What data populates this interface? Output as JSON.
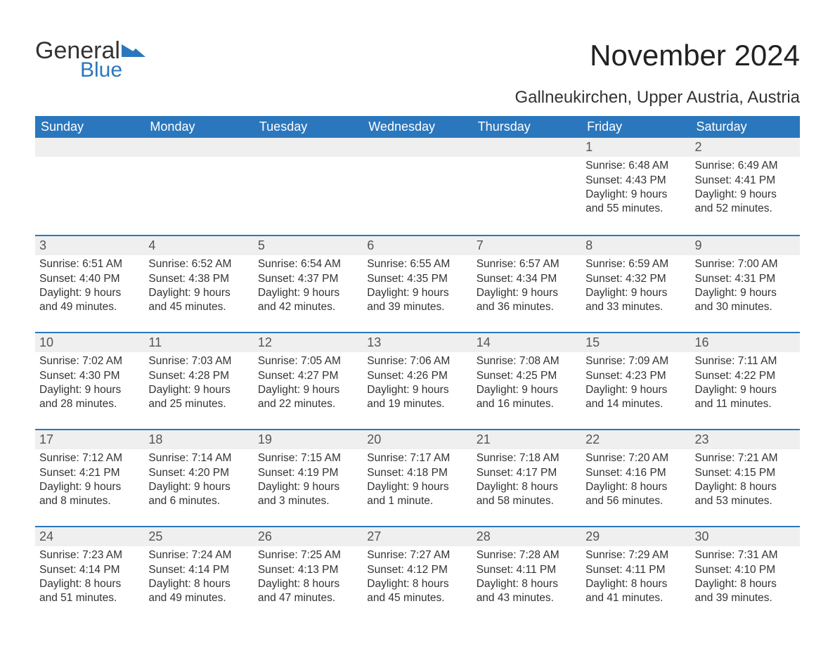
{
  "brand": {
    "word1": "General",
    "word2": "Blue",
    "accent_color": "#2b77bd"
  },
  "title": "November 2024",
  "location": "Gallneukirchen, Upper Austria, Austria",
  "colors": {
    "header_bg": "#2b77bd",
    "header_text": "#ffffff",
    "daybar_bg": "#efefef",
    "daybar_border": "#2b77bd",
    "page_bg": "#ffffff",
    "body_text": "#333333"
  },
  "typography": {
    "title_fontsize": 42,
    "location_fontsize": 24,
    "header_fontsize": 18,
    "daynum_fontsize": 18,
    "body_fontsize": 15.5
  },
  "weekday_headers": [
    "Sunday",
    "Monday",
    "Tuesday",
    "Wednesday",
    "Thursday",
    "Friday",
    "Saturday"
  ],
  "weeks": [
    [
      null,
      null,
      null,
      null,
      null,
      {
        "day": "1",
        "sunrise": "Sunrise: 6:48 AM",
        "sunset": "Sunset: 4:43 PM",
        "daylight1": "Daylight: 9 hours",
        "daylight2": "and 55 minutes."
      },
      {
        "day": "2",
        "sunrise": "Sunrise: 6:49 AM",
        "sunset": "Sunset: 4:41 PM",
        "daylight1": "Daylight: 9 hours",
        "daylight2": "and 52 minutes."
      }
    ],
    [
      {
        "day": "3",
        "sunrise": "Sunrise: 6:51 AM",
        "sunset": "Sunset: 4:40 PM",
        "daylight1": "Daylight: 9 hours",
        "daylight2": "and 49 minutes."
      },
      {
        "day": "4",
        "sunrise": "Sunrise: 6:52 AM",
        "sunset": "Sunset: 4:38 PM",
        "daylight1": "Daylight: 9 hours",
        "daylight2": "and 45 minutes."
      },
      {
        "day": "5",
        "sunrise": "Sunrise: 6:54 AM",
        "sunset": "Sunset: 4:37 PM",
        "daylight1": "Daylight: 9 hours",
        "daylight2": "and 42 minutes."
      },
      {
        "day": "6",
        "sunrise": "Sunrise: 6:55 AM",
        "sunset": "Sunset: 4:35 PM",
        "daylight1": "Daylight: 9 hours",
        "daylight2": "and 39 minutes."
      },
      {
        "day": "7",
        "sunrise": "Sunrise: 6:57 AM",
        "sunset": "Sunset: 4:34 PM",
        "daylight1": "Daylight: 9 hours",
        "daylight2": "and 36 minutes."
      },
      {
        "day": "8",
        "sunrise": "Sunrise: 6:59 AM",
        "sunset": "Sunset: 4:32 PM",
        "daylight1": "Daylight: 9 hours",
        "daylight2": "and 33 minutes."
      },
      {
        "day": "9",
        "sunrise": "Sunrise: 7:00 AM",
        "sunset": "Sunset: 4:31 PM",
        "daylight1": "Daylight: 9 hours",
        "daylight2": "and 30 minutes."
      }
    ],
    [
      {
        "day": "10",
        "sunrise": "Sunrise: 7:02 AM",
        "sunset": "Sunset: 4:30 PM",
        "daylight1": "Daylight: 9 hours",
        "daylight2": "and 28 minutes."
      },
      {
        "day": "11",
        "sunrise": "Sunrise: 7:03 AM",
        "sunset": "Sunset: 4:28 PM",
        "daylight1": "Daylight: 9 hours",
        "daylight2": "and 25 minutes."
      },
      {
        "day": "12",
        "sunrise": "Sunrise: 7:05 AM",
        "sunset": "Sunset: 4:27 PM",
        "daylight1": "Daylight: 9 hours",
        "daylight2": "and 22 minutes."
      },
      {
        "day": "13",
        "sunrise": "Sunrise: 7:06 AM",
        "sunset": "Sunset: 4:26 PM",
        "daylight1": "Daylight: 9 hours",
        "daylight2": "and 19 minutes."
      },
      {
        "day": "14",
        "sunrise": "Sunrise: 7:08 AM",
        "sunset": "Sunset: 4:25 PM",
        "daylight1": "Daylight: 9 hours",
        "daylight2": "and 16 minutes."
      },
      {
        "day": "15",
        "sunrise": "Sunrise: 7:09 AM",
        "sunset": "Sunset: 4:23 PM",
        "daylight1": "Daylight: 9 hours",
        "daylight2": "and 14 minutes."
      },
      {
        "day": "16",
        "sunrise": "Sunrise: 7:11 AM",
        "sunset": "Sunset: 4:22 PM",
        "daylight1": "Daylight: 9 hours",
        "daylight2": "and 11 minutes."
      }
    ],
    [
      {
        "day": "17",
        "sunrise": "Sunrise: 7:12 AM",
        "sunset": "Sunset: 4:21 PM",
        "daylight1": "Daylight: 9 hours",
        "daylight2": "and 8 minutes."
      },
      {
        "day": "18",
        "sunrise": "Sunrise: 7:14 AM",
        "sunset": "Sunset: 4:20 PM",
        "daylight1": "Daylight: 9 hours",
        "daylight2": "and 6 minutes."
      },
      {
        "day": "19",
        "sunrise": "Sunrise: 7:15 AM",
        "sunset": "Sunset: 4:19 PM",
        "daylight1": "Daylight: 9 hours",
        "daylight2": "and 3 minutes."
      },
      {
        "day": "20",
        "sunrise": "Sunrise: 7:17 AM",
        "sunset": "Sunset: 4:18 PM",
        "daylight1": "Daylight: 9 hours",
        "daylight2": "and 1 minute."
      },
      {
        "day": "21",
        "sunrise": "Sunrise: 7:18 AM",
        "sunset": "Sunset: 4:17 PM",
        "daylight1": "Daylight: 8 hours",
        "daylight2": "and 58 minutes."
      },
      {
        "day": "22",
        "sunrise": "Sunrise: 7:20 AM",
        "sunset": "Sunset: 4:16 PM",
        "daylight1": "Daylight: 8 hours",
        "daylight2": "and 56 minutes."
      },
      {
        "day": "23",
        "sunrise": "Sunrise: 7:21 AM",
        "sunset": "Sunset: 4:15 PM",
        "daylight1": "Daylight: 8 hours",
        "daylight2": "and 53 minutes."
      }
    ],
    [
      {
        "day": "24",
        "sunrise": "Sunrise: 7:23 AM",
        "sunset": "Sunset: 4:14 PM",
        "daylight1": "Daylight: 8 hours",
        "daylight2": "and 51 minutes."
      },
      {
        "day": "25",
        "sunrise": "Sunrise: 7:24 AM",
        "sunset": "Sunset: 4:14 PM",
        "daylight1": "Daylight: 8 hours",
        "daylight2": "and 49 minutes."
      },
      {
        "day": "26",
        "sunrise": "Sunrise: 7:25 AM",
        "sunset": "Sunset: 4:13 PM",
        "daylight1": "Daylight: 8 hours",
        "daylight2": "and 47 minutes."
      },
      {
        "day": "27",
        "sunrise": "Sunrise: 7:27 AM",
        "sunset": "Sunset: 4:12 PM",
        "daylight1": "Daylight: 8 hours",
        "daylight2": "and 45 minutes."
      },
      {
        "day": "28",
        "sunrise": "Sunrise: 7:28 AM",
        "sunset": "Sunset: 4:11 PM",
        "daylight1": "Daylight: 8 hours",
        "daylight2": "and 43 minutes."
      },
      {
        "day": "29",
        "sunrise": "Sunrise: 7:29 AM",
        "sunset": "Sunset: 4:11 PM",
        "daylight1": "Daylight: 8 hours",
        "daylight2": "and 41 minutes."
      },
      {
        "day": "30",
        "sunrise": "Sunrise: 7:31 AM",
        "sunset": "Sunset: 4:10 PM",
        "daylight1": "Daylight: 8 hours",
        "daylight2": "and 39 minutes."
      }
    ]
  ]
}
